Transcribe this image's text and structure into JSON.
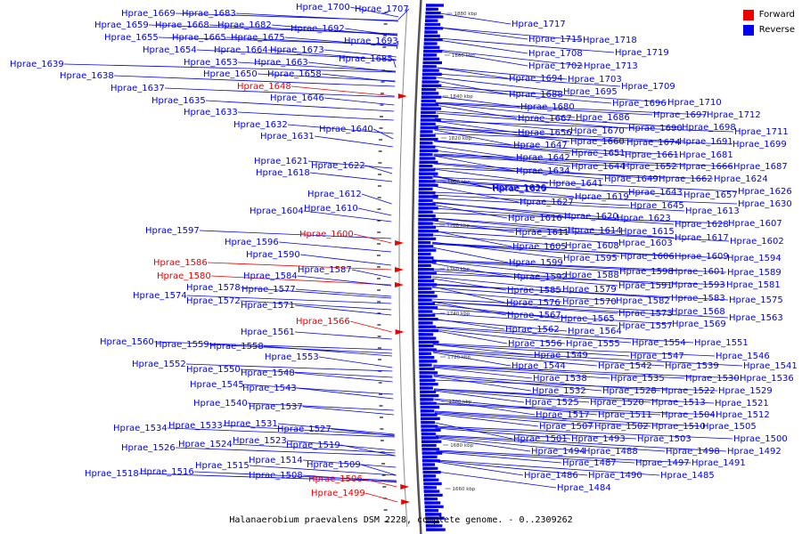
{
  "caption": "Halanaerobium praevalens DSM 2228, complete genome. - 0..2309262",
  "legend": [
    {
      "label": "Forward",
      "color": "#ee0000"
    },
    {
      "label": "Reverse",
      "color": "#0000ee"
    }
  ],
  "colors": {
    "forward": "#ee0000",
    "reverse": "#0000ee",
    "backbone": "#555555",
    "ruler": "#888888"
  },
  "axis_ticks": [
    "1880 kbp",
    "1860 kbp",
    "1840 kbp",
    "1820 kbp",
    "1800 kbp",
    "1780 kbp",
    "1760 kbp",
    "1740 kbp",
    "1720 kbp",
    "1700 kbp",
    "1680 kbp",
    "1660 kbp"
  ],
  "left_labels": [
    {
      "text": "Hprae_1669",
      "strand": "reverse"
    },
    {
      "text": "Hprae_1683",
      "strand": "reverse"
    },
    {
      "text": "Hprae_1659",
      "strand": "reverse"
    },
    {
      "text": "Hprae_1668",
      "strand": "reverse"
    },
    {
      "text": "Hprae_1682",
      "strand": "reverse"
    },
    {
      "text": "Hprae_1655",
      "strand": "reverse"
    },
    {
      "text": "Hprae_1665",
      "strand": "reverse"
    },
    {
      "text": "Hprae_1675",
      "strand": "reverse"
    },
    {
      "text": "Hprae_1654",
      "strand": "reverse"
    },
    {
      "text": "Hprae_1664",
      "strand": "reverse"
    },
    {
      "text": "Hprae_1673",
      "strand": "reverse"
    },
    {
      "text": "Hprae_1639",
      "strand": "reverse"
    },
    {
      "text": "Hprae_1653",
      "strand": "reverse"
    },
    {
      "text": "Hprae_1663",
      "strand": "reverse"
    },
    {
      "text": "Hprae_1638",
      "strand": "reverse"
    },
    {
      "text": "Hprae_1650",
      "strand": "reverse"
    },
    {
      "text": "Hprae_1658",
      "strand": "reverse"
    },
    {
      "text": "Hprae_1637",
      "strand": "reverse"
    },
    {
      "text": "Hprae_1648",
      "strand": "forward"
    },
    {
      "text": "Hprae_1635",
      "strand": "reverse"
    },
    {
      "text": "Hprae_1646",
      "strand": "reverse"
    },
    {
      "text": "Hprae_1633",
      "strand": "reverse"
    },
    {
      "text": "Hprae_1632",
      "strand": "reverse"
    },
    {
      "text": "Hprae_1640",
      "strand": "reverse"
    },
    {
      "text": "Hprae_1631",
      "strand": "reverse"
    },
    {
      "text": "Hprae_1621",
      "strand": "reverse"
    },
    {
      "text": "Hprae_1622",
      "strand": "reverse"
    },
    {
      "text": "Hprae_1618",
      "strand": "reverse"
    },
    {
      "text": "Hprae_1612",
      "strand": "reverse"
    },
    {
      "text": "Hprae_1604",
      "strand": "reverse"
    },
    {
      "text": "Hprae_1610",
      "strand": "reverse"
    },
    {
      "text": "Hprae_1597",
      "strand": "reverse"
    },
    {
      "text": "Hprae_1600",
      "strand": "forward"
    },
    {
      "text": "Hprae_1596",
      "strand": "reverse"
    },
    {
      "text": "Hprae_1590",
      "strand": "reverse"
    },
    {
      "text": "Hprae_1586",
      "strand": "forward"
    },
    {
      "text": "Hprae_1587",
      "strand": "reverse"
    },
    {
      "text": "Hprae_1580",
      "strand": "forward"
    },
    {
      "text": "Hprae_1584",
      "strand": "reverse"
    },
    {
      "text": "Hprae_1578",
      "strand": "reverse"
    },
    {
      "text": "Hprae_1577",
      "strand": "reverse"
    },
    {
      "text": "Hprae_1574",
      "strand": "reverse"
    },
    {
      "text": "Hprae_1572",
      "strand": "reverse"
    },
    {
      "text": "Hprae_1571",
      "strand": "reverse"
    },
    {
      "text": "Hprae_1566",
      "strand": "forward"
    },
    {
      "text": "Hprae_1561",
      "strand": "reverse"
    },
    {
      "text": "Hprae_1560",
      "strand": "reverse"
    },
    {
      "text": "Hprae_1559",
      "strand": "reverse"
    },
    {
      "text": "Hprae_1558",
      "strand": "reverse"
    },
    {
      "text": "Hprae_1553",
      "strand": "reverse"
    },
    {
      "text": "Hprae_1552",
      "strand": "reverse"
    },
    {
      "text": "Hprae_1550",
      "strand": "reverse"
    },
    {
      "text": "Hprae_1548",
      "strand": "reverse"
    },
    {
      "text": "Hprae_1545",
      "strand": "reverse"
    },
    {
      "text": "Hprae_1543",
      "strand": "reverse"
    },
    {
      "text": "Hprae_1540",
      "strand": "reverse"
    },
    {
      "text": "Hprae_1537",
      "strand": "reverse"
    },
    {
      "text": "Hprae_1534",
      "strand": "reverse"
    },
    {
      "text": "Hprae_1533",
      "strand": "reverse"
    },
    {
      "text": "Hprae_1531",
      "strand": "reverse"
    },
    {
      "text": "Hprae_1527",
      "strand": "reverse"
    },
    {
      "text": "Hprae_1526",
      "strand": "reverse"
    },
    {
      "text": "Hprae_1524",
      "strand": "reverse"
    },
    {
      "text": "Hprae_1523",
      "strand": "reverse"
    },
    {
      "text": "Hprae_1519",
      "strand": "reverse"
    },
    {
      "text": "Hprae_1514",
      "strand": "reverse"
    },
    {
      "text": "Hprae_1518",
      "strand": "reverse"
    },
    {
      "text": "Hprae_1516",
      "strand": "reverse"
    },
    {
      "text": "Hprae_1515",
      "strand": "reverse"
    },
    {
      "text": "Hprae_1509",
      "strand": "reverse"
    },
    {
      "text": "Hprae_1508",
      "strand": "reverse"
    },
    {
      "text": "Hprae_1506",
      "strand": "forward"
    },
    {
      "text": "Hprae_1499",
      "strand": "forward"
    },
    {
      "text": "Hprae_1700",
      "strand": "reverse"
    },
    {
      "text": "Hprae_1707",
      "strand": "reverse"
    },
    {
      "text": "Hprae_1692",
      "strand": "reverse"
    },
    {
      "text": "Hprae_1693",
      "strand": "reverse"
    },
    {
      "text": "Hprae_1685",
      "strand": "reverse"
    }
  ],
  "right_labels": [
    {
      "text": "Hprae_1717",
      "strand": "reverse"
    },
    {
      "text": "Hprae_1715",
      "strand": "reverse"
    },
    {
      "text": "Hprae_1718",
      "strand": "reverse"
    },
    {
      "text": "Hprae_1708",
      "strand": "reverse"
    },
    {
      "text": "Hprae_1719",
      "strand": "reverse"
    },
    {
      "text": "Hprae_1702",
      "strand": "reverse"
    },
    {
      "text": "Hprae_1713",
      "strand": "reverse"
    },
    {
      "text": "Hprae_1694",
      "strand": "reverse"
    },
    {
      "text": "Hprae_1703",
      "strand": "reverse"
    },
    {
      "text": "Hprae_1709",
      "strand": "reverse"
    },
    {
      "text": "Hprae_1688",
      "strand": "reverse"
    },
    {
      "text": "Hprae_1695",
      "strand": "reverse"
    },
    {
      "text": "Hprae_1696",
      "strand": "reverse"
    },
    {
      "text": "Hprae_1710",
      "strand": "reverse"
    },
    {
      "text": "Hprae_1680",
      "strand": "reverse"
    },
    {
      "text": "Hprae_1697",
      "strand": "reverse"
    },
    {
      "text": "Hprae_1712",
      "strand": "reverse"
    },
    {
      "text": "Hprae_1667",
      "strand": "reverse"
    },
    {
      "text": "Hprae_1686",
      "strand": "reverse"
    },
    {
      "text": "Hprae_1690",
      "strand": "reverse"
    },
    {
      "text": "Hprae_1698",
      "strand": "reverse"
    },
    {
      "text": "Hprae_1711",
      "strand": "reverse"
    },
    {
      "text": "Hprae_1656",
      "strand": "reverse"
    },
    {
      "text": "Hprae_1670",
      "strand": "reverse"
    },
    {
      "text": "Hprae_1674",
      "strand": "reverse"
    },
    {
      "text": "Hprae_1691",
      "strand": "reverse"
    },
    {
      "text": "Hprae_1647",
      "strand": "reverse"
    },
    {
      "text": "Hprae_1660",
      "strand": "reverse"
    },
    {
      "text": "Hprae_1699",
      "strand": "reverse"
    },
    {
      "text": "Hprae_1642",
      "strand": "reverse"
    },
    {
      "text": "Hprae_1651",
      "strand": "reverse"
    },
    {
      "text": "Hprae_1661",
      "strand": "reverse"
    },
    {
      "text": "Hprae_1681",
      "strand": "reverse"
    },
    {
      "text": "Hprae_1634",
      "strand": "reverse"
    },
    {
      "text": "Hprae_1644",
      "strand": "reverse"
    },
    {
      "text": "Hprae_1652",
      "strand": "reverse"
    },
    {
      "text": "Hprae_1666",
      "strand": "reverse"
    },
    {
      "text": "Hprae_1687",
      "strand": "reverse"
    },
    {
      "text": "Hprae_1629",
      "strand": "reverse"
    },
    {
      "text": "Hprae_1641",
      "strand": "reverse"
    },
    {
      "text": "Hprae_1649",
      "strand": "reverse"
    },
    {
      "text": "Hprae_1662",
      "strand": "reverse"
    },
    {
      "text": "Hprae_1624",
      "strand": "reverse"
    },
    {
      "text": "Hprae_1636",
      "strand": "reverse"
    },
    {
      "text": "Hprae_1643",
      "strand": "reverse"
    },
    {
      "text": "Hprae_1657",
      "strand": "reverse"
    },
    {
      "text": "Hprae_1626",
      "strand": "reverse"
    },
    {
      "text": "Hprae_1619",
      "strand": "reverse"
    },
    {
      "text": "Hprae_1627",
      "strand": "reverse"
    },
    {
      "text": "Hprae_1645",
      "strand": "reverse"
    },
    {
      "text": "Hprae_1630",
      "strand": "reverse"
    },
    {
      "text": "Hprae_1613",
      "strand": "reverse"
    },
    {
      "text": "Hprae_1616",
      "strand": "reverse"
    },
    {
      "text": "Hprae_1620",
      "strand": "reverse"
    },
    {
      "text": "Hprae_1623",
      "strand": "reverse"
    },
    {
      "text": "Hprae_1628",
      "strand": "reverse"
    },
    {
      "text": "Hprae_1607",
      "strand": "reverse"
    },
    {
      "text": "Hprae_1611",
      "strand": "reverse"
    },
    {
      "text": "Hprae_1614",
      "strand": "reverse"
    },
    {
      "text": "Hprae_1615",
      "strand": "reverse"
    },
    {
      "text": "Hprae_1617",
      "strand": "reverse"
    },
    {
      "text": "Hprae_1602",
      "strand": "reverse"
    },
    {
      "text": "Hprae_1605",
      "strand": "reverse"
    },
    {
      "text": "Hprae_1608",
      "strand": "reverse"
    },
    {
      "text": "Hprae_1603",
      "strand": "reverse"
    },
    {
      "text": "Hprae_1606",
      "strand": "reverse"
    },
    {
      "text": "Hprae_1609",
      "strand": "reverse"
    },
    {
      "text": "Hprae_1594",
      "strand": "reverse"
    },
    {
      "text": "Hprae_1599",
      "strand": "reverse"
    },
    {
      "text": "Hprae_1595",
      "strand": "reverse"
    },
    {
      "text": "Hprae_1598",
      "strand": "reverse"
    },
    {
      "text": "Hprae_1601",
      "strand": "reverse"
    },
    {
      "text": "Hprae_1589",
      "strand": "reverse"
    },
    {
      "text": "Hprae_1592",
      "strand": "reverse"
    },
    {
      "text": "Hprae_1588",
      "strand": "reverse"
    },
    {
      "text": "Hprae_1591",
      "strand": "reverse"
    },
    {
      "text": "Hprae_1593",
      "strand": "reverse"
    },
    {
      "text": "Hprae_1581",
      "strand": "reverse"
    },
    {
      "text": "Hprae_1585",
      "strand": "reverse"
    },
    {
      "text": "Hprae_1579",
      "strand": "reverse"
    },
    {
      "text": "Hprae_1582",
      "strand": "reverse"
    },
    {
      "text": "Hprae_1583",
      "strand": "reverse"
    },
    {
      "text": "Hprae_1575",
      "strand": "reverse"
    },
    {
      "text": "Hprae_1576",
      "strand": "reverse"
    },
    {
      "text": "Hprae_1570",
      "strand": "reverse"
    },
    {
      "text": "Hprae_1573",
      "strand": "reverse"
    },
    {
      "text": "Hprae_1568",
      "strand": "reverse"
    },
    {
      "text": "Hprae_1567",
      "strand": "reverse"
    },
    {
      "text": "Hprae_1565",
      "strand": "reverse"
    },
    {
      "text": "Hprae_1569",
      "strand": "reverse"
    },
    {
      "text": "Hprae_1563",
      "strand": "reverse"
    },
    {
      "text": "Hprae_1562",
      "strand": "reverse"
    },
    {
      "text": "Hprae_1564",
      "strand": "reverse"
    },
    {
      "text": "Hprae_1557",
      "strand": "reverse"
    },
    {
      "text": "Hprae_1556",
      "strand": "reverse"
    },
    {
      "text": "Hprae_1555",
      "strand": "reverse"
    },
    {
      "text": "Hprae_1554",
      "strand": "reverse"
    },
    {
      "text": "Hprae_1551",
      "strand": "reverse"
    },
    {
      "text": "Hprae_1549",
      "strand": "reverse"
    },
    {
      "text": "Hprae_1547",
      "strand": "reverse"
    },
    {
      "text": "Hprae_1546",
      "strand": "reverse"
    },
    {
      "text": "Hprae_1544",
      "strand": "reverse"
    },
    {
      "text": "Hprae_1542",
      "strand": "reverse"
    },
    {
      "text": "Hprae_1539",
      "strand": "reverse"
    },
    {
      "text": "Hprae_1541",
      "strand": "reverse"
    },
    {
      "text": "Hprae_1538",
      "strand": "reverse"
    },
    {
      "text": "Hprae_1535",
      "strand": "reverse"
    },
    {
      "text": "Hprae_1530",
      "strand": "reverse"
    },
    {
      "text": "Hprae_1536",
      "strand": "reverse"
    },
    {
      "text": "Hprae_1532",
      "strand": "reverse"
    },
    {
      "text": "Hprae_1528",
      "strand": "reverse"
    },
    {
      "text": "Hprae_1522",
      "strand": "reverse"
    },
    {
      "text": "Hprae_1529",
      "strand": "reverse"
    },
    {
      "text": "Hprae_1525",
      "strand": "reverse"
    },
    {
      "text": "Hprae_1520",
      "strand": "reverse"
    },
    {
      "text": "Hprae_1513",
      "strand": "reverse"
    },
    {
      "text": "Hprae_1521",
      "strand": "reverse"
    },
    {
      "text": "Hprae_1517",
      "strand": "reverse"
    },
    {
      "text": "Hprae_1511",
      "strand": "reverse"
    },
    {
      "text": "Hprae_1504",
      "strand": "reverse"
    },
    {
      "text": "Hprae_1512",
      "strand": "reverse"
    },
    {
      "text": "Hprae_1507",
      "strand": "reverse"
    },
    {
      "text": "Hprae_1502",
      "strand": "reverse"
    },
    {
      "text": "Hprae_1510",
      "strand": "reverse"
    },
    {
      "text": "Hprae_1505",
      "strand": "reverse"
    },
    {
      "text": "Hprae_1501",
      "strand": "reverse"
    },
    {
      "text": "Hprae_1493",
      "strand": "reverse"
    },
    {
      "text": "Hprae_1503",
      "strand": "reverse"
    },
    {
      "text": "Hprae_1500",
      "strand": "reverse"
    },
    {
      "text": "Hprae_1494",
      "strand": "reverse"
    },
    {
      "text": "Hprae_1488",
      "strand": "reverse"
    },
    {
      "text": "Hprae_1498",
      "strand": "reverse"
    },
    {
      "text": "Hprae_1492",
      "strand": "reverse"
    },
    {
      "text": "Hprae_1487",
      "strand": "reverse"
    },
    {
      "text": "Hprae_1497",
      "strand": "reverse"
    },
    {
      "text": "Hprae_1491",
      "strand": "reverse"
    },
    {
      "text": "Hprae_1486",
      "strand": "reverse"
    },
    {
      "text": "Hprae_1490",
      "strand": "reverse"
    },
    {
      "text": "Hprae_1485",
      "strand": "reverse"
    },
    {
      "text": "Hprae_1484",
      "strand": "reverse"
    }
  ]
}
